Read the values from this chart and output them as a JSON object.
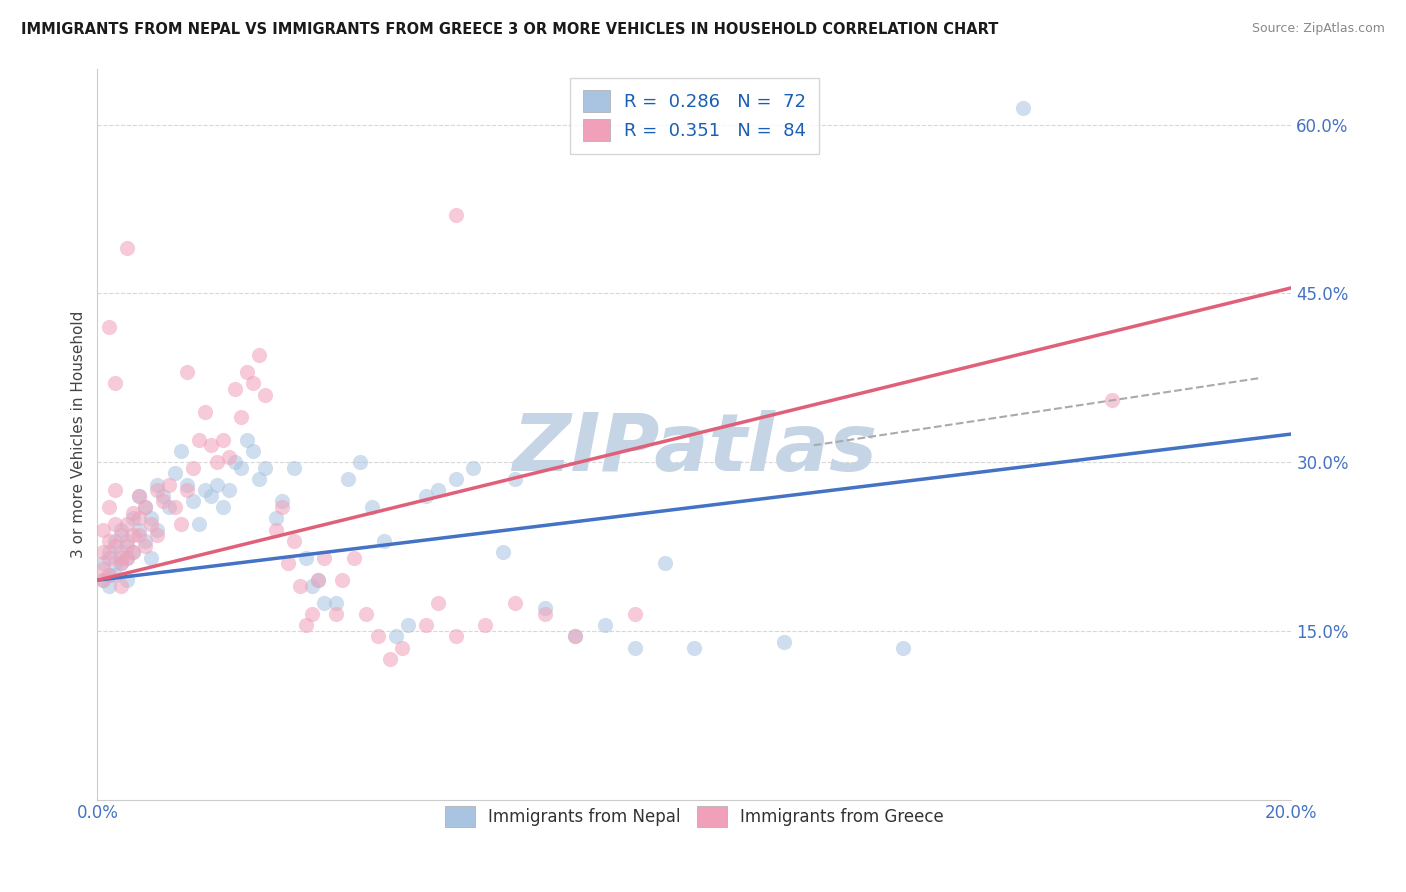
{
  "title": "IMMIGRANTS FROM NEPAL VS IMMIGRANTS FROM GREECE 3 OR MORE VEHICLES IN HOUSEHOLD CORRELATION CHART",
  "source": "Source: ZipAtlas.com",
  "ylabel": "3 or more Vehicles in Household",
  "xlim": [
    0.0,
    0.2
  ],
  "ylim": [
    0.0,
    0.65
  ],
  "xtick_vals": [
    0.0,
    0.2
  ],
  "xtick_labels": [
    "0.0%",
    "20.0%"
  ],
  "ytick_vals": [
    0.15,
    0.3,
    0.45,
    0.6
  ],
  "ytick_labels": [
    "15.0%",
    "30.0%",
    "45.0%",
    "60.0%"
  ],
  "nepal_color": "#a8c4e0",
  "greece_color": "#f0a0b8",
  "nepal_R": 0.286,
  "nepal_N": 72,
  "greece_R": 0.351,
  "greece_N": 84,
  "nepal_line_color": "#4472c4",
  "greece_line_color": "#e0607a",
  "legend_R_color": "#1a5fb4",
  "legend_N_color": "#c0392b",
  "nepal_scatter": [
    [
      0.001,
      0.195
    ],
    [
      0.001,
      0.21
    ],
    [
      0.002,
      0.2
    ],
    [
      0.002,
      0.22
    ],
    [
      0.002,
      0.19
    ],
    [
      0.003,
      0.21
    ],
    [
      0.003,
      0.23
    ],
    [
      0.003,
      0.2
    ],
    [
      0.004,
      0.22
    ],
    [
      0.004,
      0.24
    ],
    [
      0.004,
      0.21
    ],
    [
      0.005,
      0.23
    ],
    [
      0.005,
      0.215
    ],
    [
      0.005,
      0.195
    ],
    [
      0.006,
      0.25
    ],
    [
      0.006,
      0.22
    ],
    [
      0.007,
      0.27
    ],
    [
      0.007,
      0.24
    ],
    [
      0.008,
      0.26
    ],
    [
      0.008,
      0.23
    ],
    [
      0.009,
      0.25
    ],
    [
      0.009,
      0.215
    ],
    [
      0.01,
      0.28
    ],
    [
      0.01,
      0.24
    ],
    [
      0.011,
      0.27
    ],
    [
      0.012,
      0.26
    ],
    [
      0.013,
      0.29
    ],
    [
      0.014,
      0.31
    ],
    [
      0.015,
      0.28
    ],
    [
      0.016,
      0.265
    ],
    [
      0.017,
      0.245
    ],
    [
      0.018,
      0.275
    ],
    [
      0.019,
      0.27
    ],
    [
      0.02,
      0.28
    ],
    [
      0.021,
      0.26
    ],
    [
      0.022,
      0.275
    ],
    [
      0.023,
      0.3
    ],
    [
      0.024,
      0.295
    ],
    [
      0.025,
      0.32
    ],
    [
      0.026,
      0.31
    ],
    [
      0.027,
      0.285
    ],
    [
      0.028,
      0.295
    ],
    [
      0.03,
      0.25
    ],
    [
      0.031,
      0.265
    ],
    [
      0.033,
      0.295
    ],
    [
      0.035,
      0.215
    ],
    [
      0.036,
      0.19
    ],
    [
      0.037,
      0.195
    ],
    [
      0.038,
      0.175
    ],
    [
      0.04,
      0.175
    ],
    [
      0.042,
      0.285
    ],
    [
      0.044,
      0.3
    ],
    [
      0.046,
      0.26
    ],
    [
      0.048,
      0.23
    ],
    [
      0.05,
      0.145
    ],
    [
      0.052,
      0.155
    ],
    [
      0.055,
      0.27
    ],
    [
      0.057,
      0.275
    ],
    [
      0.06,
      0.285
    ],
    [
      0.063,
      0.295
    ],
    [
      0.068,
      0.22
    ],
    [
      0.07,
      0.285
    ],
    [
      0.075,
      0.17
    ],
    [
      0.08,
      0.145
    ],
    [
      0.085,
      0.155
    ],
    [
      0.09,
      0.135
    ],
    [
      0.095,
      0.21
    ],
    [
      0.1,
      0.135
    ],
    [
      0.115,
      0.14
    ],
    [
      0.135,
      0.135
    ],
    [
      0.155,
      0.615
    ]
  ],
  "greece_scatter": [
    [
      0.001,
      0.205
    ],
    [
      0.001,
      0.22
    ],
    [
      0.001,
      0.24
    ],
    [
      0.001,
      0.195
    ],
    [
      0.002,
      0.215
    ],
    [
      0.002,
      0.23
    ],
    [
      0.002,
      0.26
    ],
    [
      0.002,
      0.2
    ],
    [
      0.003,
      0.225
    ],
    [
      0.003,
      0.245
    ],
    [
      0.003,
      0.275
    ],
    [
      0.003,
      0.37
    ],
    [
      0.004,
      0.215
    ],
    [
      0.004,
      0.235
    ],
    [
      0.004,
      0.21
    ],
    [
      0.004,
      0.19
    ],
    [
      0.005,
      0.225
    ],
    [
      0.005,
      0.245
    ],
    [
      0.005,
      0.215
    ],
    [
      0.006,
      0.235
    ],
    [
      0.006,
      0.255
    ],
    [
      0.006,
      0.22
    ],
    [
      0.007,
      0.25
    ],
    [
      0.007,
      0.27
    ],
    [
      0.007,
      0.235
    ],
    [
      0.008,
      0.26
    ],
    [
      0.008,
      0.225
    ],
    [
      0.009,
      0.245
    ],
    [
      0.01,
      0.275
    ],
    [
      0.01,
      0.235
    ],
    [
      0.011,
      0.265
    ],
    [
      0.012,
      0.28
    ],
    [
      0.013,
      0.26
    ],
    [
      0.014,
      0.245
    ],
    [
      0.015,
      0.275
    ],
    [
      0.015,
      0.38
    ],
    [
      0.016,
      0.295
    ],
    [
      0.017,
      0.32
    ],
    [
      0.018,
      0.345
    ],
    [
      0.019,
      0.315
    ],
    [
      0.02,
      0.3
    ],
    [
      0.021,
      0.32
    ],
    [
      0.022,
      0.305
    ],
    [
      0.023,
      0.365
    ],
    [
      0.024,
      0.34
    ],
    [
      0.025,
      0.38
    ],
    [
      0.026,
      0.37
    ],
    [
      0.027,
      0.395
    ],
    [
      0.028,
      0.36
    ],
    [
      0.03,
      0.24
    ],
    [
      0.031,
      0.26
    ],
    [
      0.032,
      0.21
    ],
    [
      0.033,
      0.23
    ],
    [
      0.034,
      0.19
    ],
    [
      0.035,
      0.155
    ],
    [
      0.036,
      0.165
    ],
    [
      0.037,
      0.195
    ],
    [
      0.038,
      0.215
    ],
    [
      0.04,
      0.165
    ],
    [
      0.041,
      0.195
    ],
    [
      0.043,
      0.215
    ],
    [
      0.045,
      0.165
    ],
    [
      0.047,
      0.145
    ],
    [
      0.049,
      0.125
    ],
    [
      0.051,
      0.135
    ],
    [
      0.055,
      0.155
    ],
    [
      0.057,
      0.175
    ],
    [
      0.06,
      0.145
    ],
    [
      0.065,
      0.155
    ],
    [
      0.07,
      0.175
    ],
    [
      0.075,
      0.165
    ],
    [
      0.08,
      0.145
    ],
    [
      0.09,
      0.165
    ],
    [
      0.002,
      0.42
    ],
    [
      0.005,
      0.49
    ],
    [
      0.06,
      0.52
    ],
    [
      0.17,
      0.355
    ]
  ],
  "background_color": "#ffffff",
  "grid_color": "#d8d8d8",
  "watermark": "ZIPatlas",
  "watermark_color": "#c5d5e5",
  "nepal_line": [
    [
      0.0,
      0.195
    ],
    [
      0.2,
      0.325
    ]
  ],
  "greece_line": [
    [
      0.0,
      0.195
    ],
    [
      0.2,
      0.455
    ]
  ],
  "dash_line": [
    [
      0.12,
      0.315
    ],
    [
      0.195,
      0.375
    ]
  ]
}
